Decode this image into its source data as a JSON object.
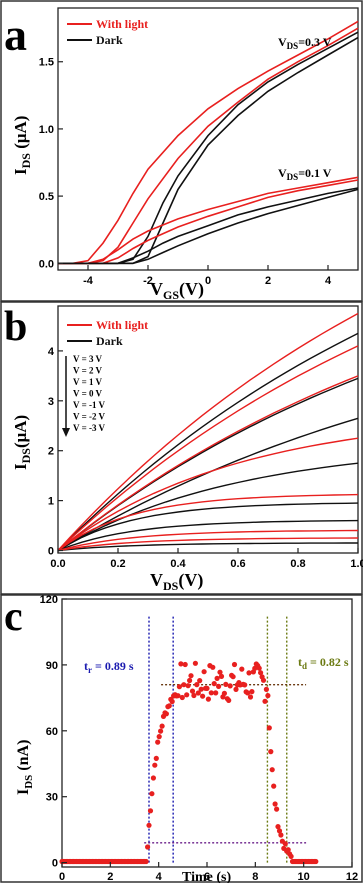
{
  "chart_data": [
    {
      "panel": "a",
      "type": "line",
      "xlabel": "V",
      "xlabel_sub": "GS",
      "xlabel_unit": "(V)",
      "ylabel": "I",
      "ylabel_sub": "DS",
      "ylabel_unit": " (μA)",
      "xlim": [
        -5,
        5
      ],
      "ylim": [
        -0.05,
        1.9
      ],
      "xticks": [
        "-4",
        "-2",
        "0",
        "2",
        "4"
      ],
      "xtick_values": [
        -4,
        -2,
        0,
        2,
        4
      ],
      "yticks": [
        "0.0",
        "0.5",
        "1.0",
        "1.5"
      ],
      "ytick_values": [
        0,
        0.5,
        1.0,
        1.5
      ],
      "legend": [
        {
          "name": "With light",
          "color": "#e8201f"
        },
        {
          "name": "Dark",
          "color": "#111111"
        }
      ],
      "annotations": [
        {
          "main": "V",
          "sub": "DS",
          "rest": "=0.3 V"
        },
        {
          "main": "V",
          "sub": "DS",
          "rest": "=0.1 V"
        }
      ],
      "series": [
        {
          "color": "#e8201f",
          "x": [
            -5,
            -4.5,
            -4,
            -3.5,
            -3,
            -2.5,
            -2,
            -1,
            0,
            1,
            2,
            3,
            4,
            5
          ],
          "y": [
            0,
            0,
            0.02,
            0.15,
            0.32,
            0.52,
            0.7,
            0.95,
            1.15,
            1.3,
            1.43,
            1.55,
            1.67,
            1.8
          ]
        },
        {
          "color": "#e8201f",
          "x": [
            -5,
            -4,
            -3.5,
            -3,
            -2.5,
            -2,
            -1,
            0,
            1,
            2,
            3,
            4,
            5
          ],
          "y": [
            0,
            0,
            0.02,
            0.12,
            0.3,
            0.48,
            0.78,
            1.02,
            1.2,
            1.37,
            1.5,
            1.62,
            1.75
          ]
        },
        {
          "color": "#111111",
          "x": [
            -5,
            -3,
            -2.5,
            -2,
            -1.5,
            -1,
            0,
            1,
            2,
            3,
            4,
            5
          ],
          "y": [
            0,
            0,
            0.03,
            0.2,
            0.45,
            0.65,
            0.95,
            1.18,
            1.35,
            1.48,
            1.6,
            1.72
          ]
        },
        {
          "color": "#111111",
          "x": [
            -5,
            -2.5,
            -2,
            -1.5,
            -1,
            0,
            1,
            2,
            3,
            4,
            5
          ],
          "y": [
            0,
            0,
            0.05,
            0.3,
            0.55,
            0.88,
            1.1,
            1.28,
            1.42,
            1.55,
            1.68
          ]
        },
        {
          "color": "#e8201f",
          "x": [
            -5,
            -4,
            -3.5,
            -3,
            -2.5,
            -2,
            -1,
            0,
            1,
            2,
            3,
            4,
            5
          ],
          "y": [
            0,
            0,
            0.03,
            0.1,
            0.18,
            0.24,
            0.33,
            0.4,
            0.46,
            0.52,
            0.56,
            0.6,
            0.64
          ]
        },
        {
          "color": "#e8201f",
          "x": [
            -5,
            -3.5,
            -3,
            -2.5,
            -2,
            -1,
            0,
            1,
            2,
            3,
            4,
            5
          ],
          "y": [
            0,
            0,
            0.04,
            0.11,
            0.17,
            0.27,
            0.35,
            0.42,
            0.49,
            0.54,
            0.58,
            0.62
          ]
        },
        {
          "color": "#111111",
          "x": [
            -5,
            -3,
            -2.5,
            -2,
            -1.5,
            -1,
            0,
            1,
            2,
            3,
            4,
            5
          ],
          "y": [
            0,
            0,
            0.04,
            0.09,
            0.15,
            0.2,
            0.28,
            0.36,
            0.42,
            0.47,
            0.52,
            0.56
          ]
        },
        {
          "color": "#111111",
          "x": [
            -5,
            -2.5,
            -2,
            -1.5,
            -1,
            0,
            1,
            2,
            3,
            4,
            5
          ],
          "y": [
            0,
            0,
            0.03,
            0.08,
            0.13,
            0.22,
            0.3,
            0.37,
            0.43,
            0.49,
            0.55
          ]
        }
      ]
    },
    {
      "panel": "b",
      "type": "line",
      "xlabel": "V",
      "xlabel_sub": "DS",
      "xlabel_unit": "(V)",
      "ylabel": "I",
      "ylabel_sub": "DS",
      "ylabel_unit": "(μA)",
      "xlim": [
        0,
        1.0
      ],
      "ylim": [
        -0.05,
        4.9
      ],
      "xticks": [
        "0.0",
        "0.2",
        "0.4",
        "0.6",
        "0.8",
        "1.0"
      ],
      "xtick_values": [
        0,
        0.2,
        0.4,
        0.6,
        0.8,
        1.0
      ],
      "yticks": [
        "0",
        "1",
        "2",
        "3",
        "4"
      ],
      "ytick_values": [
        0,
        1,
        2,
        3,
        4
      ],
      "legend": [
        {
          "name": "With light",
          "color": "#e8201f"
        },
        {
          "name": "Dark",
          "color": "#111111"
        }
      ],
      "gate_voltages": [
        "V = 3 V",
        "V = 2 V",
        "V = 1 V",
        "V = 0 V",
        "V = -1 V",
        "V = -2 V",
        "V = -3 V"
      ],
      "dark_final": [
        4.35,
        3.45,
        2.65,
        1.75,
        0.95,
        0.6,
        0.15
      ],
      "light_final": [
        4.75,
        4.1,
        3.5,
        2.25,
        1.12,
        0.4,
        0.25
      ]
    },
    {
      "panel": "c",
      "type": "scatter",
      "xlabel": "Time (s)",
      "ylabel": "I",
      "ylabel_sub": "DS",
      "ylabel_unit": " (nA)",
      "xlim": [
        0,
        12
      ],
      "ylim": [
        -2,
        120
      ],
      "xticks": [
        "0",
        "2",
        "4",
        "6",
        "8",
        "10",
        "12"
      ],
      "xtick_values": [
        0,
        2,
        4,
        6,
        8,
        10,
        12
      ],
      "yticks": [
        "0",
        "30",
        "60",
        "90",
        "120"
      ],
      "ytick_values": [
        0,
        30,
        60,
        90,
        120
      ],
      "color": "#e8201f",
      "rise": {
        "label_main": "t",
        "label_sub": "r",
        "label_rest": " = 0.89 s",
        "t_start": 3.6,
        "t_end": 4.6,
        "color": "#1b1bb0"
      },
      "decay": {
        "label_main": "t",
        "label_sub": "d",
        "label_rest": " = 0.82 s",
        "t_start": 8.5,
        "t_end": 9.3,
        "color": "#6b7a12"
      },
      "levels": [
        81,
        9
      ],
      "off_level": 0.5,
      "on_start": 3.5,
      "on_end": 8.5,
      "on_mean": 82
    }
  ],
  "panel_letters": [
    "a",
    "b",
    "c"
  ]
}
